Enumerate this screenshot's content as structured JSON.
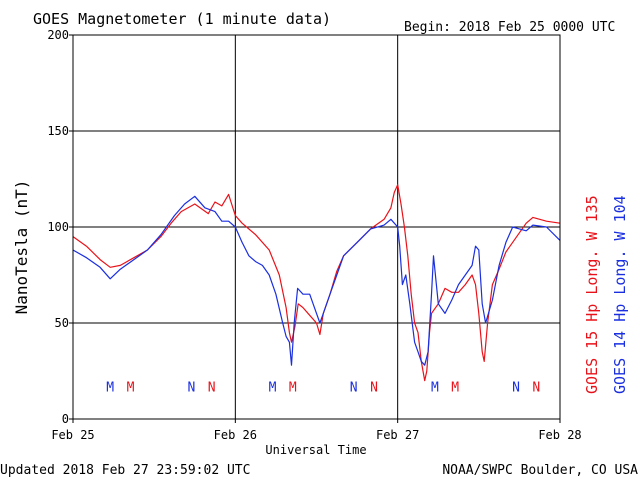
{
  "header": {
    "title": "GOES Magnetometer (1 minute data)",
    "begin": "Begin:  2018 Feb 25 0000 UTC"
  },
  "footer": {
    "updated": "Updated 2018 Feb 27 23:59:02 UTC",
    "credit": "NOAA/SWPC Boulder, CO USA"
  },
  "colors": {
    "goes15": "#e8131a",
    "goes14": "#1a2fe0",
    "frame": "#000000",
    "background": "#ffffff"
  },
  "chart_data": {
    "type": "line",
    "title": "GOES Magnetometer (1 minute data)",
    "xlabel": "Universal Time",
    "ylabel": "NanoTesla (nT)",
    "xlim": [
      0,
      72
    ],
    "ylim": [
      0,
      200
    ],
    "x_unit": "hours since 2018 Feb 25 0000 UTC",
    "yticks": [
      0,
      50,
      100,
      150,
      200
    ],
    "xticks": [
      {
        "x": 0,
        "label": "Feb 25"
      },
      {
        "x": 24,
        "label": "Feb 26"
      },
      {
        "x": 48,
        "label": "Feb 27"
      },
      {
        "x": 72,
        "label": "Feb 28"
      }
    ],
    "grid": true,
    "legend_placement": "right, vertical",
    "series": [
      {
        "name": "GOES 15 Hp  Long. W 135",
        "color": "#e8131a",
        "points": [
          [
            0,
            95
          ],
          [
            2,
            90
          ],
          [
            4,
            83
          ],
          [
            5.5,
            79
          ],
          [
            7,
            80
          ],
          [
            9,
            84
          ],
          [
            11,
            88
          ],
          [
            13,
            95
          ],
          [
            14.5,
            102
          ],
          [
            16,
            108
          ],
          [
            18,
            112
          ],
          [
            20,
            107
          ],
          [
            21,
            113
          ],
          [
            22,
            111
          ],
          [
            23,
            117
          ],
          [
            24,
            106
          ],
          [
            25,
            102
          ],
          [
            27,
            96
          ],
          [
            29,
            88
          ],
          [
            30.5,
            75
          ],
          [
            31.5,
            58
          ],
          [
            32,
            45
          ],
          [
            32.3,
            40
          ],
          [
            32.8,
            48
          ],
          [
            33.3,
            60
          ],
          [
            34,
            58
          ],
          [
            35,
            54
          ],
          [
            36,
            50
          ],
          [
            36.5,
            44
          ],
          [
            37,
            55
          ],
          [
            38,
            65
          ],
          [
            39,
            77
          ],
          [
            40,
            85
          ],
          [
            42,
            92
          ],
          [
            44,
            99
          ],
          [
            46,
            104
          ],
          [
            47,
            110
          ],
          [
            47.5,
            118
          ],
          [
            48,
            122
          ],
          [
            48.5,
            112
          ],
          [
            49,
            100
          ],
          [
            49.5,
            85
          ],
          [
            50,
            65
          ],
          [
            50.5,
            50
          ],
          [
            51,
            45
          ],
          [
            51.5,
            30
          ],
          [
            52,
            20
          ],
          [
            52.3,
            25
          ],
          [
            52.7,
            45
          ],
          [
            53,
            55
          ],
          [
            54,
            60
          ],
          [
            55,
            68
          ],
          [
            56,
            66
          ],
          [
            57,
            66
          ],
          [
            58,
            70
          ],
          [
            59,
            75
          ],
          [
            59.5,
            70
          ],
          [
            60,
            55
          ],
          [
            60.5,
            35
          ],
          [
            60.8,
            30
          ],
          [
            61.3,
            50
          ],
          [
            62,
            70
          ],
          [
            63,
            78
          ],
          [
            64,
            87
          ],
          [
            66,
            97
          ],
          [
            67,
            102
          ],
          [
            68,
            105
          ],
          [
            70,
            103
          ],
          [
            72,
            102
          ]
        ]
      },
      {
        "name": "GOES 14 Hp  Long. W 104",
        "color": "#1a2fe0",
        "points": [
          [
            0,
            88
          ],
          [
            2,
            84
          ],
          [
            4,
            79
          ],
          [
            5.5,
            73
          ],
          [
            7,
            78
          ],
          [
            9,
            83
          ],
          [
            11,
            88
          ],
          [
            13,
            96
          ],
          [
            15,
            106
          ],
          [
            16.5,
            112
          ],
          [
            18,
            116
          ],
          [
            19.5,
            110
          ],
          [
            21,
            108
          ],
          [
            22,
            103
          ],
          [
            23,
            103
          ],
          [
            24,
            100
          ],
          [
            25,
            92
          ],
          [
            26,
            85
          ],
          [
            27,
            82
          ],
          [
            28,
            80
          ],
          [
            29,
            75
          ],
          [
            30,
            65
          ],
          [
            31,
            50
          ],
          [
            31.5,
            43
          ],
          [
            32,
            40
          ],
          [
            32.3,
            28
          ],
          [
            32.7,
            50
          ],
          [
            33.2,
            68
          ],
          [
            34,
            65
          ],
          [
            35,
            65
          ],
          [
            35.5,
            60
          ],
          [
            36.5,
            50
          ],
          [
            37,
            55
          ],
          [
            38,
            65
          ],
          [
            39,
            75
          ],
          [
            40,
            85
          ],
          [
            42,
            92
          ],
          [
            44,
            99
          ],
          [
            46,
            101
          ],
          [
            47,
            104
          ],
          [
            48,
            100
          ],
          [
            48.3,
            90
          ],
          [
            48.7,
            70
          ],
          [
            49.2,
            75
          ],
          [
            49.8,
            60
          ],
          [
            50.5,
            40
          ],
          [
            51,
            35
          ],
          [
            51.5,
            30
          ],
          [
            52,
            28
          ],
          [
            52.5,
            35
          ],
          [
            53,
            65
          ],
          [
            53.3,
            85
          ],
          [
            54,
            60
          ],
          [
            55,
            55
          ],
          [
            56,
            62
          ],
          [
            57,
            70
          ],
          [
            58,
            75
          ],
          [
            59,
            80
          ],
          [
            59.5,
            90
          ],
          [
            60,
            88
          ],
          [
            60.5,
            60
          ],
          [
            61,
            50
          ],
          [
            62,
            62
          ],
          [
            63,
            80
          ],
          [
            64,
            92
          ],
          [
            65,
            100
          ],
          [
            66,
            99
          ],
          [
            67,
            98
          ],
          [
            68,
            101
          ],
          [
            70,
            100
          ],
          [
            72,
            93
          ]
        ]
      }
    ],
    "annotations": [
      {
        "x": 5.5,
        "label": "M",
        "series": "GOES 14 Hp  Long. W 104"
      },
      {
        "x": 8.5,
        "label": "M",
        "series": "GOES 15 Hp  Long. W 135"
      },
      {
        "x": 17.5,
        "label": "N",
        "series": "GOES 14 Hp  Long. W 104"
      },
      {
        "x": 20.5,
        "label": "N",
        "series": "GOES 15 Hp  Long. W 135"
      },
      {
        "x": 29.5,
        "label": "M",
        "series": "GOES 14 Hp  Long. W 104"
      },
      {
        "x": 32.5,
        "label": "M",
        "series": "GOES 15 Hp  Long. W 135"
      },
      {
        "x": 41.5,
        "label": "N",
        "series": "GOES 14 Hp  Long. W 104"
      },
      {
        "x": 44.5,
        "label": "N",
        "series": "GOES 15 Hp  Long. W 135"
      },
      {
        "x": 53.5,
        "label": "M",
        "series": "GOES 14 Hp  Long. W 104"
      },
      {
        "x": 56.5,
        "label": "M",
        "series": "GOES 15 Hp  Long. W 135"
      },
      {
        "x": 65.5,
        "label": "N",
        "series": "GOES 14 Hp  Long. W 104"
      },
      {
        "x": 68.5,
        "label": "N",
        "series": "GOES 15 Hp  Long. W 135"
      }
    ],
    "annotation_level": 17
  }
}
